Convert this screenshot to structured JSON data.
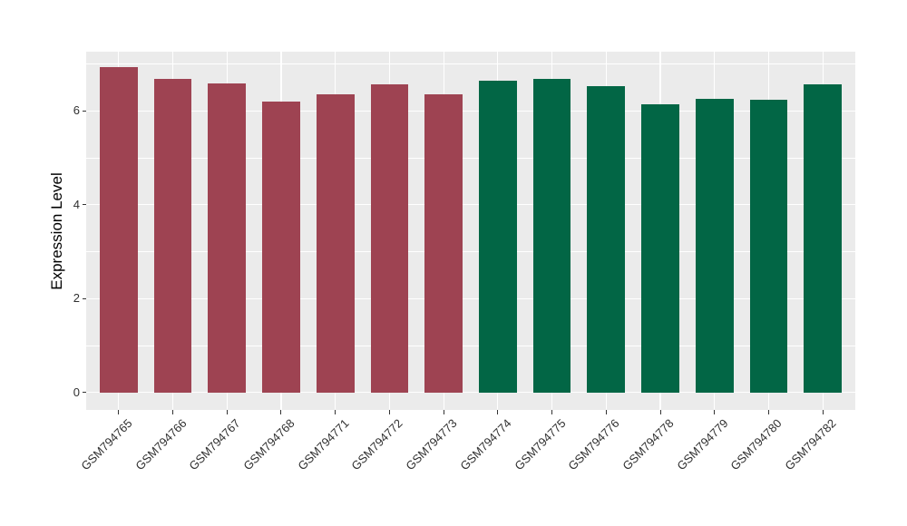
{
  "chart_data": {
    "type": "bar",
    "title": "",
    "xlabel": "",
    "ylabel": "Expression Level",
    "categories": [
      "GSM794765",
      "GSM794766",
      "GSM794767",
      "GSM794768",
      "GSM794771",
      "GSM794772",
      "GSM794773",
      "GSM794774",
      "GSM794775",
      "GSM794776",
      "GSM794778",
      "GSM794779",
      "GSM794780",
      "GSM794782"
    ],
    "values": [
      6.93,
      6.68,
      6.58,
      6.19,
      6.36,
      6.56,
      6.35,
      6.65,
      6.68,
      6.52,
      6.13,
      6.25,
      6.23,
      6.57
    ],
    "bar_colors": [
      "#9E4352",
      "#9E4352",
      "#9E4352",
      "#9E4352",
      "#9E4352",
      "#9E4352",
      "#9E4352",
      "#026645",
      "#026645",
      "#026645",
      "#026645",
      "#026645",
      "#026645",
      "#026645"
    ],
    "group_colors": {
      "left_group": "#9E4352",
      "right_group": "#026645"
    },
    "yticks": [
      0,
      2,
      4,
      6
    ],
    "minor_yticks": [
      1,
      3,
      5,
      7
    ],
    "ylim": [
      0,
      7.26
    ],
    "y_domain": [
      -0.37,
      7.26
    ],
    "x_tick_angle": 45,
    "legend": "none",
    "grid": "on",
    "panel_bg": "#EBEBEB",
    "grid_color": "#FFFFFF",
    "tick_mark_color": "#333333",
    "tick_label_color": "#303030",
    "axis_title_color": "#000000"
  }
}
